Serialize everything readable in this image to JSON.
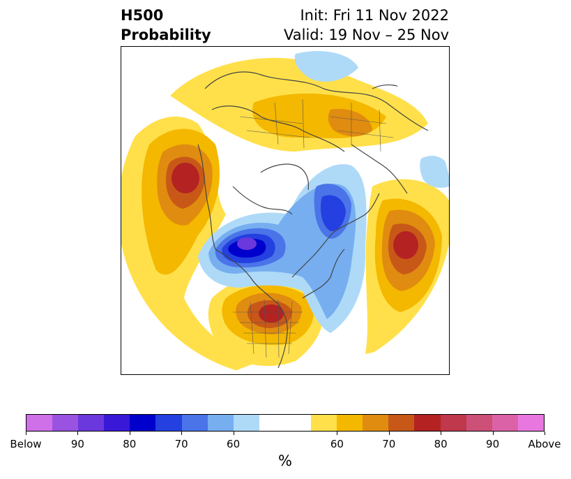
{
  "title": {
    "left_line1": "H500",
    "left_line2": "Probability",
    "right_line1": "Init: Fri 11 Nov 2022",
    "right_line2": "Valid: 19 Nov – 25 Nov"
  },
  "colorbar": {
    "unit": "%",
    "colors": [
      "#d070e8",
      "#9a52e0",
      "#6a38dc",
      "#3a18d8",
      "#0000cc",
      "#2440e0",
      "#4a74e8",
      "#76aef0",
      "#aedaf8",
      "#ffffff",
      "#ffffff",
      "#ffe04a",
      "#f4b800",
      "#e08c10",
      "#c85818",
      "#b42222",
      "#c0384c",
      "#cc5078",
      "#dc62a8",
      "#e878e0"
    ],
    "labels": [
      "Below",
      "90",
      "80",
      "70",
      "60",
      "60",
      "70",
      "80",
      "90",
      "Above"
    ]
  },
  "map": {
    "colors": {
      "strong_below": "#6a38dc",
      "below_80": "#0000cc",
      "below_70": "#2440e0",
      "below_65": "#4a74e8",
      "below_60": "#76aef0",
      "below_light": "#aedaf8",
      "above_light": "#ffe04a",
      "above_60": "#f4b800",
      "above_70": "#e08c10",
      "above_75": "#c85818",
      "above_80": "#b42222",
      "coast": "#444444"
    }
  }
}
